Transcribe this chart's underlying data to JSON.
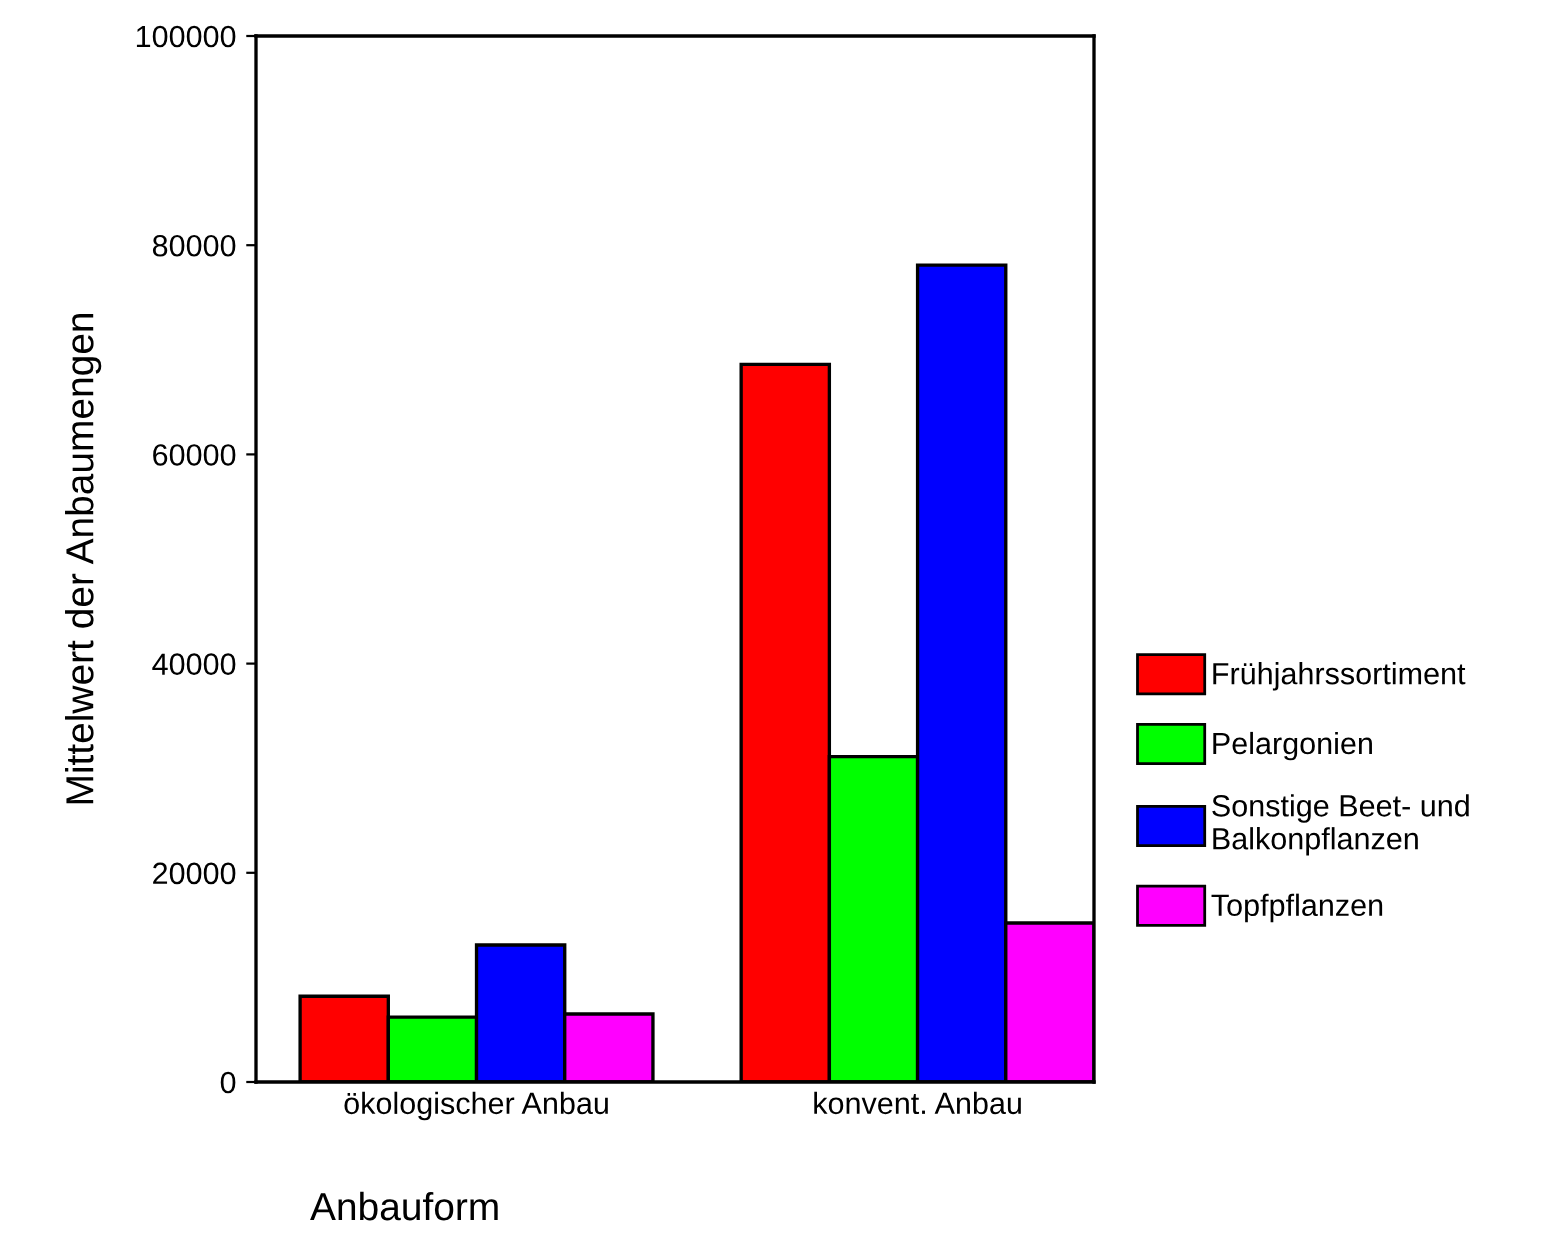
{
  "chart_data": {
    "type": "bar",
    "xlabel": "Anbauform",
    "ylabel": "Mittelwert der Anbaumengen",
    "categories": [
      "ökologischer Anbau",
      "konvent. Anbau"
    ],
    "series": [
      {
        "name": "Frühjahrssortiment",
        "color": "#ff0000",
        "values": [
          8200,
          68600
        ]
      },
      {
        "name": "Pelargonien",
        "color": "#00ff00",
        "values": [
          6200,
          31100
        ]
      },
      {
        "name": "Sonstige Beet- und\nBalkonpflanzen",
        "color": "#0000ff",
        "values": [
          13100,
          78100
        ]
      },
      {
        "name": "Topfpflanzen",
        "color": "#ff00ff",
        "values": [
          6500,
          15200
        ]
      }
    ],
    "ylim": [
      0,
      100000
    ],
    "yticks": [
      0,
      20000,
      40000,
      60000,
      80000,
      100000
    ],
    "grid": false,
    "legend": "right"
  }
}
